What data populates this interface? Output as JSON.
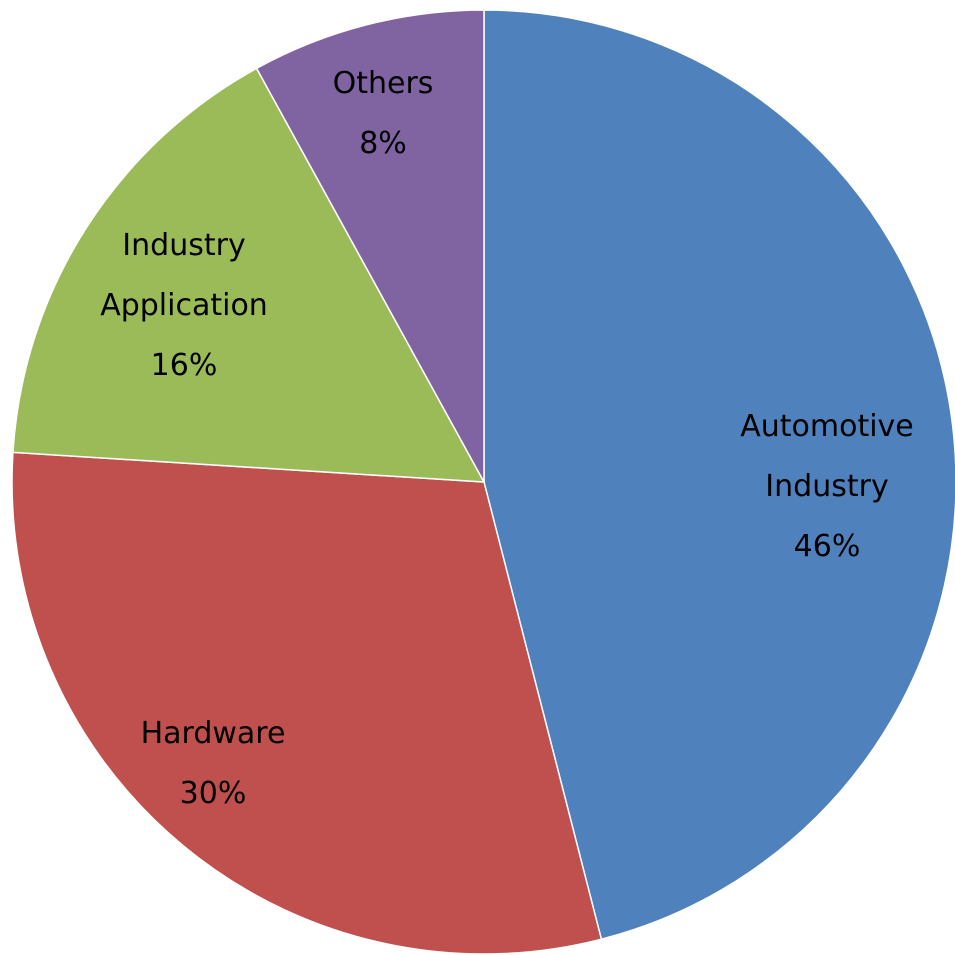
{
  "chart_data": {
    "type": "pie",
    "title": "",
    "slices": [
      {
        "label_lines": [
          "Automotive",
          "Industry"
        ],
        "percent_label": "46%",
        "value": 46,
        "color": "#4F81BD"
      },
      {
        "label_lines": [
          "Hardware"
        ],
        "percent_label": "30%",
        "value": 30,
        "color": "#C0504D"
      },
      {
        "label_lines": [
          "Industry",
          "Application"
        ],
        "percent_label": "16%",
        "value": 16,
        "color": "#9BBB59"
      },
      {
        "label_lines": [
          "Others"
        ],
        "percent_label": "8%",
        "value": 8,
        "color": "#8064A2"
      }
    ],
    "start_angle": "12 o'clock",
    "direction": "clockwise",
    "legend": "none",
    "data_labels": "inside"
  }
}
